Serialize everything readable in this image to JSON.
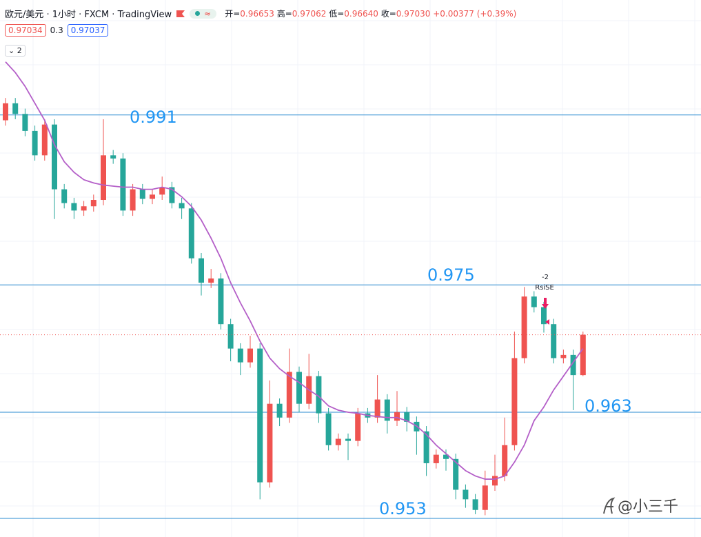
{
  "header": {
    "symbol": "欧元/美元 · 1小时 · FXCM · TradingView",
    "badge": "≈",
    "ohlc": [
      {
        "label": "开=",
        "value": "0.96653"
      },
      {
        "label": "高=",
        "value": "0.97062"
      },
      {
        "label": "低=",
        "value": "0.96640"
      },
      {
        "label": "收=",
        "value": "0.97030"
      }
    ],
    "change": "+0.00377 (+0.39%)",
    "sell": "0.97034",
    "spread": "0.3",
    "buy": "0.97037",
    "indicators": "2"
  },
  "chart_data": {
    "type": "candlestick",
    "ylim": [
      0.95125,
      1.00183
    ],
    "up_color": "#ef5350",
    "down_color": "#26a69a",
    "ma_color": "#b45fc8",
    "level_color": "#2a8bd0",
    "open": [
      0.9905,
      0.9921,
      0.9911,
      0.9895,
      0.9872,
      0.9901,
      0.984,
      0.9827,
      0.982,
      0.9824,
      0.983,
      0.9872,
      0.9869,
      0.982,
      0.984,
      0.9831,
      0.9835,
      0.9842,
      0.9827,
      0.9822,
      0.9775,
      0.9752,
      0.9756,
      0.9713,
      0.969,
      0.9677,
      0.969,
      0.9564,
      0.9638,
      0.9625,
      0.9668,
      0.9638,
      0.9664,
      0.9629,
      0.9599,
      0.9605,
      0.9603,
      0.9629,
      0.9625,
      0.9642,
      0.9622,
      0.963,
      0.9621,
      0.9612,
      0.9582,
      0.959,
      0.9586,
      0.9557,
      0.9548,
      0.9538,
      0.9561,
      0.957,
      0.9599,
      0.9681,
      0.9739,
      0.9729,
      0.9713,
      0.9681,
      0.9684,
      0.9665
    ],
    "high": [
      0.9926,
      0.9926,
      0.9916,
      0.99,
      0.9906,
      0.9906,
      0.9845,
      0.9832,
      0.9829,
      0.9835,
      0.9906,
      0.9877,
      0.9874,
      0.9845,
      0.9845,
      0.984,
      0.9852,
      0.9847,
      0.9832,
      0.9827,
      0.978,
      0.9765,
      0.9761,
      0.9718,
      0.9695,
      0.9702,
      0.9695,
      0.966,
      0.9643,
      0.969,
      0.9673,
      0.9685,
      0.9669,
      0.9634,
      0.961,
      0.961,
      0.9634,
      0.9634,
      0.9665,
      0.9647,
      0.965,
      0.9635,
      0.9626,
      0.9617,
      0.9595,
      0.9595,
      0.9591,
      0.9562,
      0.9553,
      0.9575,
      0.959,
      0.9625,
      0.9706,
      0.9748,
      0.9744,
      0.9734,
      0.9718,
      0.9689,
      0.9689,
      0.9706
    ],
    "low": [
      0.99,
      0.9906,
      0.989,
      0.9867,
      0.9867,
      0.9812,
      0.9822,
      0.9812,
      0.9815,
      0.9819,
      0.9825,
      0.9864,
      0.9815,
      0.9815,
      0.9826,
      0.9826,
      0.983,
      0.9822,
      0.9812,
      0.977,
      0.974,
      0.9747,
      0.9708,
      0.9678,
      0.9665,
      0.9672,
      0.9548,
      0.9559,
      0.9617,
      0.962,
      0.963,
      0.9633,
      0.962,
      0.9594,
      0.9594,
      0.9585,
      0.9598,
      0.962,
      0.962,
      0.961,
      0.9617,
      0.9612,
      0.959,
      0.957,
      0.9577,
      0.9575,
      0.9548,
      0.954,
      0.9534,
      0.9533,
      0.9556,
      0.9565,
      0.9594,
      0.9676,
      0.9724,
      0.9705,
      0.9676,
      0.9676,
      0.9632,
      0.9664
    ],
    "close": [
      0.9921,
      0.9911,
      0.9895,
      0.9872,
      0.9901,
      0.984,
      0.9827,
      0.982,
      0.9824,
      0.983,
      0.9872,
      0.9869,
      0.982,
      0.984,
      0.9831,
      0.9835,
      0.9842,
      0.9827,
      0.9822,
      0.9775,
      0.9752,
      0.9756,
      0.9713,
      0.969,
      0.9677,
      0.969,
      0.9564,
      0.9638,
      0.9625,
      0.9668,
      0.9638,
      0.9664,
      0.9629,
      0.9599,
      0.9605,
      0.9603,
      0.9629,
      0.9625,
      0.9642,
      0.9622,
      0.963,
      0.9621,
      0.9612,
      0.9582,
      0.959,
      0.9586,
      0.9557,
      0.9548,
      0.9538,
      0.9561,
      0.957,
      0.9599,
      0.9681,
      0.9739,
      0.9729,
      0.9713,
      0.9681,
      0.9684,
      0.9665,
      0.9703
    ],
    "ma": [
      0.996,
      0.995,
      0.9937,
      0.9921,
      0.9905,
      0.9882,
      0.9866,
      0.9856,
      0.9849,
      0.9846,
      0.9844,
      0.9843,
      0.9842,
      0.9842,
      0.984,
      0.984,
      0.9842,
      0.984,
      0.9833,
      0.9824,
      0.9811,
      0.9794,
      0.9775,
      0.9752,
      0.9733,
      0.9716,
      0.9697,
      0.9681,
      0.9671,
      0.9664,
      0.9658,
      0.9651,
      0.9645,
      0.9636,
      0.9632,
      0.963,
      0.9629,
      0.9627,
      0.9626,
      0.9625,
      0.9625,
      0.9622,
      0.9617,
      0.9609,
      0.9599,
      0.9591,
      0.9583,
      0.9575,
      0.957,
      0.9567,
      0.9567,
      0.957,
      0.9583,
      0.9599,
      0.9622,
      0.9635,
      0.9651,
      0.9664,
      0.9677,
      0.969
    ],
    "levels": [
      0.991,
      0.975,
      0.963,
      0.953
    ],
    "signal": {
      "value": "-2",
      "name": "RsiSE"
    },
    "watermark": "@小三千"
  }
}
